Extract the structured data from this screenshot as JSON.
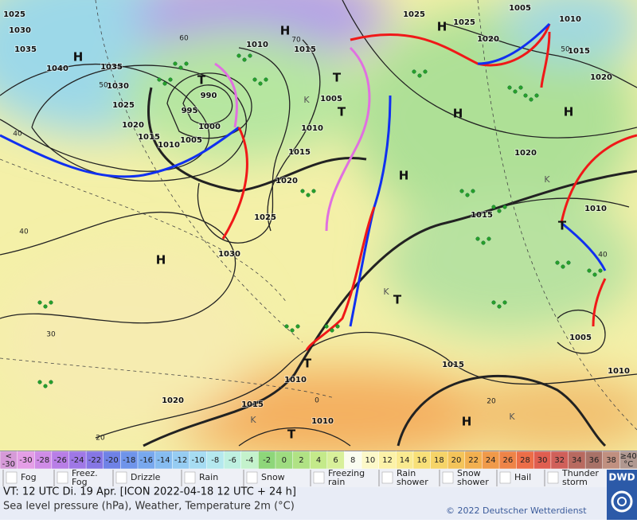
{
  "map": {
    "pressure_labels": [
      "1025",
      "1030",
      "1035",
      "1040",
      "1035",
      "1030",
      "1025",
      "1020",
      "1015",
      "1010",
      "1005",
      "1000",
      "995",
      "990",
      "1010",
      "1015",
      "1005",
      "1010",
      "1015",
      "1020",
      "1025",
      "1030",
      "1025",
      "1025",
      "1020",
      "1005",
      "1010",
      "1015",
      "1020",
      "1020",
      "1015",
      "1010",
      "1005",
      "1010",
      "1015",
      "1010",
      "1015",
      "1010",
      "1020"
    ],
    "isotherm_labels": [
      "40",
      "40",
      "30",
      "20",
      "20",
      "0",
      "40",
      "50",
      "60",
      "70",
      "50"
    ],
    "highs": [
      "H",
      "H",
      "H",
      "H",
      "H",
      "H",
      "H",
      "H"
    ],
    "lows": [
      "T",
      "T",
      "T",
      "T",
      "T",
      "T",
      "T"
    ],
    "cold_labels": [
      "K",
      "K",
      "K",
      "K",
      "K"
    ]
  },
  "scale": {
    "below": [
      "<",
      "-30"
    ],
    "steps": [
      "-30",
      "-28",
      "-26",
      "-24",
      "-22",
      "-20",
      "-18",
      "-16",
      "-14",
      "-12",
      "-10",
      "-8",
      "-6",
      "-4",
      "-2",
      "0",
      "2",
      "4",
      "6",
      "8",
      "10",
      "12",
      "14",
      "16",
      "18",
      "20",
      "22",
      "24",
      "26",
      "28",
      "30",
      "32",
      "34",
      "36",
      "38"
    ],
    "above": [
      "≥40",
      "°C"
    ],
    "colors": [
      "#d69ad8",
      "#e49ee6",
      "#cf8ce6",
      "#b87ee6",
      "#9f78e6",
      "#8676e4",
      "#6f82e6",
      "#6f94ea",
      "#78a8ee",
      "#86bcf0",
      "#96ccf2",
      "#a6dcf2",
      "#b4e8ee",
      "#bef0e0",
      "#c4f2cc",
      "#8ed67a",
      "#9edc80",
      "#b0e284",
      "#c4ea8a",
      "#d8f09a",
      "#fafcf0",
      "#fcf8c8",
      "#fcf2a8",
      "#faea90",
      "#f8e078",
      "#f6d468",
      "#f4c45a",
      "#f2b050",
      "#f09a4a",
      "#ee8448",
      "#ec6e48",
      "#e05e50",
      "#d0605a",
      "#b86a60",
      "#a87268",
      "#c09080",
      "#b09890"
    ]
  },
  "legend": [
    [
      "Fog"
    ],
    [
      "Freez.",
      "Fog"
    ],
    [
      "Drizzle"
    ],
    [
      "Rain"
    ],
    [
      "Snow"
    ],
    [
      "Freezing",
      "rain"
    ],
    [
      "Rain",
      "shower"
    ],
    [
      "Snow",
      "shower"
    ],
    [
      "Hail"
    ],
    [
      "Thunder",
      "storm"
    ]
  ],
  "logo": "DWD",
  "footer": {
    "valid": "VT: 12 UTC Di.  19 Apr. [ICON 2022-04-18  12 UTC + 24 h]",
    "subtitle": "Sea level pressure (hPa), Weather, Temperature 2m (°C)",
    "copyright": "© 2022 Deutscher Wetterdienst"
  }
}
